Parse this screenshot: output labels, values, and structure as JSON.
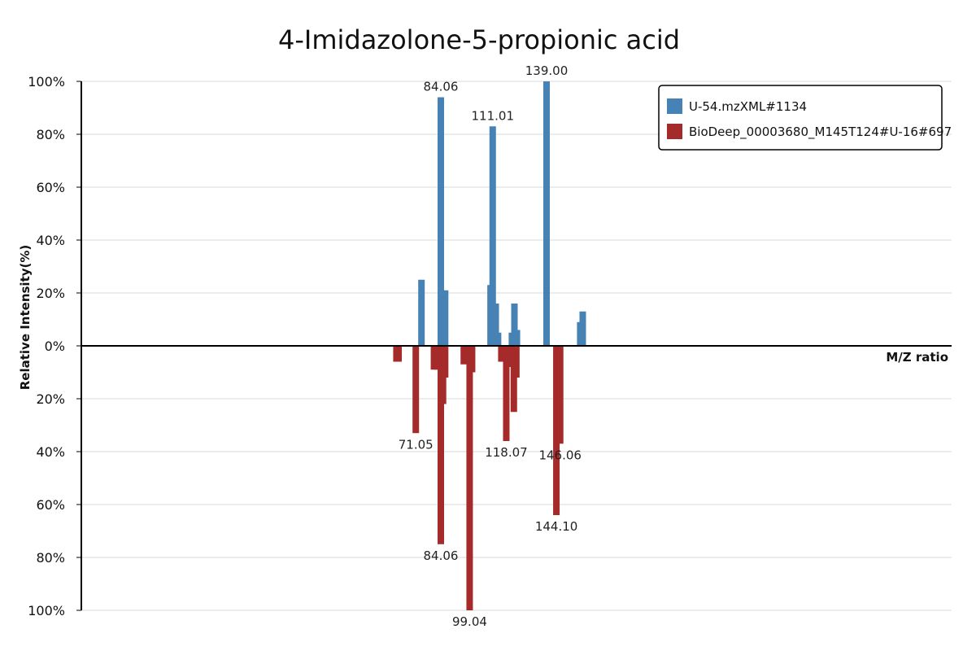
{
  "chart_data": {
    "type": "bar",
    "title": "4-Imidazolone-5-propionic acid",
    "xlabel": "M/Z ratio",
    "ylabel": "Relative Intensity(%)",
    "ylim_top": [
      0,
      100
    ],
    "ylim_bottom": [
      0,
      100
    ],
    "y_ticks_top": [
      "100%",
      "80%",
      "60%",
      "40%",
      "20%",
      "0%"
    ],
    "y_ticks_bottom": [
      "20%",
      "40%",
      "60%",
      "80%",
      "100%"
    ],
    "grid": true,
    "legend_position": "top-right",
    "series": [
      {
        "name": "U-54.mzXML#1134",
        "color": "#4682B4",
        "direction": "up",
        "peaks": [
          {
            "mz": 74.0,
            "intensity": 25
          },
          {
            "mz": 84.06,
            "intensity": 94,
            "label": "84.06"
          },
          {
            "mz": 85.2,
            "intensity": 8
          },
          {
            "mz": 86.3,
            "intensity": 21
          },
          {
            "mz": 109.9,
            "intensity": 23
          },
          {
            "mz": 111.01,
            "intensity": 83,
            "label": "111.01"
          },
          {
            "mz": 112.6,
            "intensity": 16
          },
          {
            "mz": 113.8,
            "intensity": 5
          },
          {
            "mz": 121.0,
            "intensity": 5
          },
          {
            "mz": 122.3,
            "intensity": 16
          },
          {
            "mz": 123.6,
            "intensity": 6
          },
          {
            "mz": 139.0,
            "intensity": 100,
            "label": "139.00"
          },
          {
            "mz": 156.5,
            "intensity": 9
          },
          {
            "mz": 157.8,
            "intensity": 13
          }
        ]
      },
      {
        "name": "BioDeep_00003680_M145T124#U-16#697",
        "color": "#A52A2A",
        "direction": "down",
        "peaks": [
          {
            "mz": 61.0,
            "intensity": 6
          },
          {
            "mz": 62.1,
            "intensity": 6
          },
          {
            "mz": 71.05,
            "intensity": 33,
            "label": "71.05"
          },
          {
            "mz": 80.5,
            "intensity": 9
          },
          {
            "mz": 82.3,
            "intensity": 9
          },
          {
            "mz": 84.06,
            "intensity": 75,
            "label": "84.06"
          },
          {
            "mz": 85.2,
            "intensity": 22
          },
          {
            "mz": 86.3,
            "intensity": 12
          },
          {
            "mz": 96.0,
            "intensity": 7
          },
          {
            "mz": 99.04,
            "intensity": 100,
            "label": "99.04"
          },
          {
            "mz": 100.3,
            "intensity": 10
          },
          {
            "mz": 115.5,
            "intensity": 6
          },
          {
            "mz": 118.07,
            "intensity": 36,
            "label": "118.07"
          },
          {
            "mz": 120.2,
            "intensity": 8
          },
          {
            "mz": 122.0,
            "intensity": 25
          },
          {
            "mz": 123.3,
            "intensity": 12
          },
          {
            "mz": 144.1,
            "intensity": 64,
            "label": "144.10"
          },
          {
            "mz": 146.06,
            "intensity": 37,
            "label": "146.06"
          }
        ]
      }
    ]
  }
}
